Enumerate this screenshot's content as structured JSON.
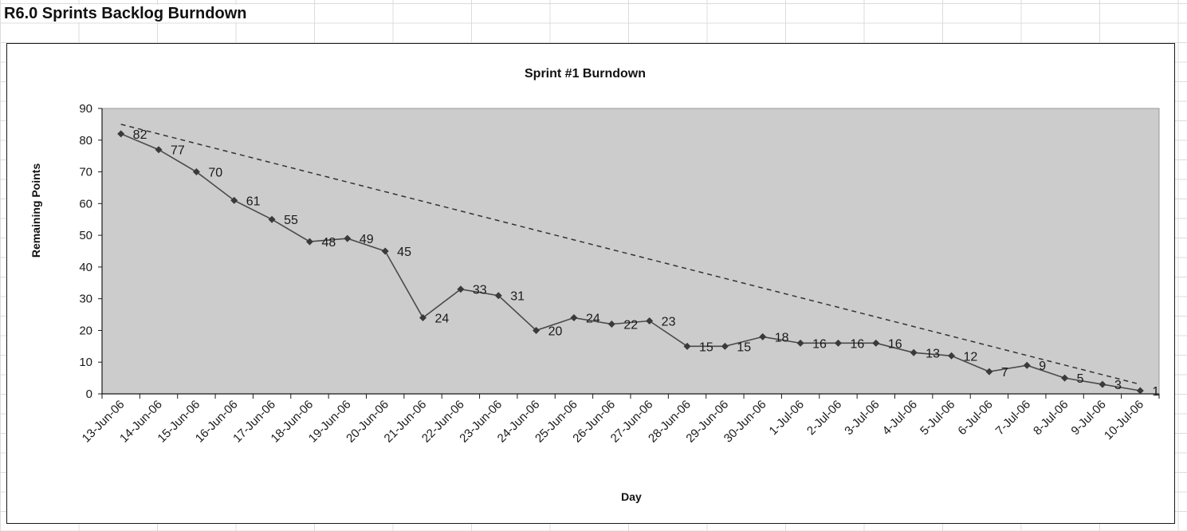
{
  "sheet": {
    "title": "R6.0 Sprints Backlog Burndown"
  },
  "chart_data": {
    "type": "line",
    "title": "Sprint #1 Burndown",
    "xlabel": "Day",
    "ylabel": "Remaining Points",
    "ylim": [
      0,
      90
    ],
    "yticks": [
      0,
      10,
      20,
      30,
      40,
      50,
      60,
      70,
      80,
      90
    ],
    "categories": [
      "13-Jun-06",
      "14-Jun-06",
      "15-Jun-06",
      "16-Jun-06",
      "17-Jun-06",
      "18-Jun-06",
      "19-Jun-06",
      "20-Jun-06",
      "21-Jun-06",
      "22-Jun-06",
      "23-Jun-06",
      "24-Jun-06",
      "25-Jun-06",
      "26-Jun-06",
      "27-Jun-06",
      "28-Jun-06",
      "29-Jun-06",
      "30-Jun-06",
      "1-Jul-06",
      "2-Jul-06",
      "3-Jul-06",
      "4-Jul-06",
      "5-Jul-06",
      "6-Jul-06",
      "7-Jul-06",
      "8-Jul-06",
      "9-Jul-06",
      "10-Jul-06"
    ],
    "series": [
      {
        "values": [
          82,
          77,
          70,
          61,
          55,
          48,
          49,
          45,
          24,
          33,
          31,
          20,
          24,
          22,
          23,
          15,
          15,
          18,
          16,
          16,
          16,
          13,
          12,
          7,
          9,
          5,
          3,
          1
        ],
        "color": "#4a4a4a",
        "marker": "diamond",
        "data_labels": true
      }
    ],
    "trendline": {
      "style": "dashed",
      "color": "#333333",
      "start": 85,
      "end": 3
    },
    "plot_background": "#cccccc",
    "grid": false,
    "legend": "none"
  }
}
